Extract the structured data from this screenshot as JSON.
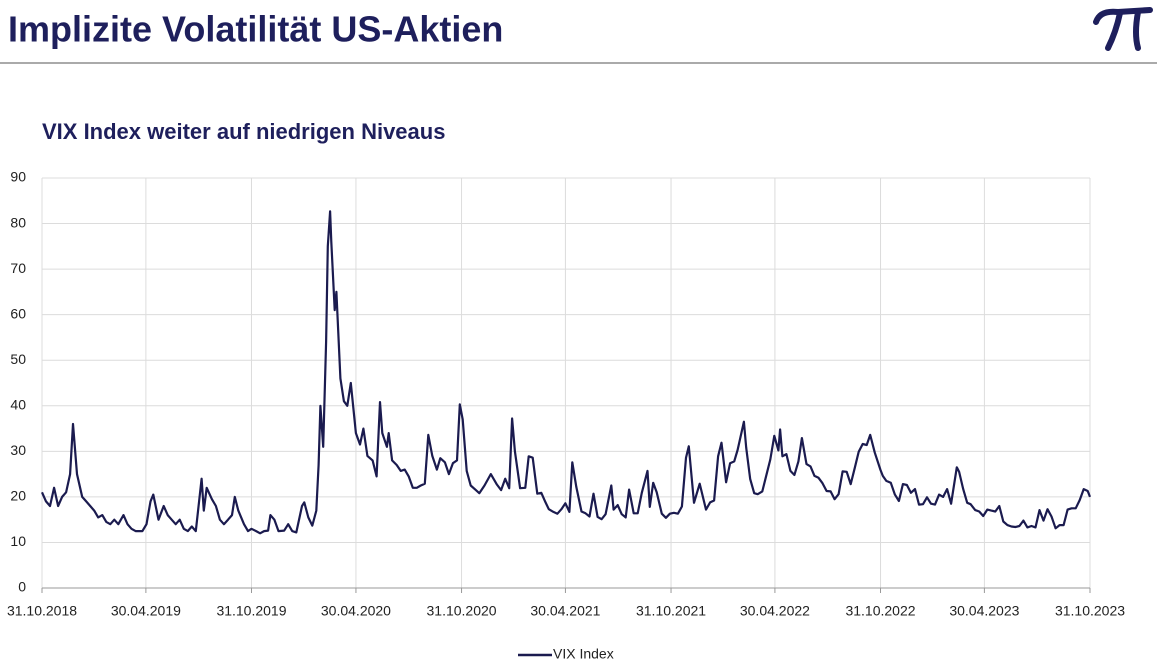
{
  "header": {
    "title": "Implizite Volatilität US-Aktien"
  },
  "chart_data": {
    "type": "line",
    "title": "VIX Index weiter auf niedrigen Niveaus",
    "ylim": [
      0,
      90
    ],
    "yticks": [
      0,
      10,
      20,
      30,
      40,
      50,
      60,
      70,
      80,
      90
    ],
    "xlim": [
      "2018-10-31",
      "2023-10-31"
    ],
    "xticks": [
      {
        "value": "2018-10-31",
        "label": "31.10.2018"
      },
      {
        "value": "2019-04-30",
        "label": "30.04.2019"
      },
      {
        "value": "2019-10-31",
        "label": "31.10.2019"
      },
      {
        "value": "2020-04-30",
        "label": "30.04.2020"
      },
      {
        "value": "2020-10-31",
        "label": "31.10.2020"
      },
      {
        "value": "2021-04-30",
        "label": "30.04.2021"
      },
      {
        "value": "2021-10-31",
        "label": "31.10.2021"
      },
      {
        "value": "2022-04-30",
        "label": "30.04.2022"
      },
      {
        "value": "2022-10-31",
        "label": "31.10.2022"
      },
      {
        "value": "2023-04-30",
        "label": "30.04.2023"
      },
      {
        "value": "2023-10-31",
        "label": "31.10.2023"
      }
    ],
    "grid": true,
    "legend": "bottom",
    "x": [
      "2018-10-31",
      "2018-11-07",
      "2018-11-14",
      "2018-11-21",
      "2018-11-28",
      "2018-12-05",
      "2018-12-12",
      "2018-12-19",
      "2018-12-24",
      "2018-12-31",
      "2019-01-09",
      "2019-01-16",
      "2019-01-23",
      "2019-01-30",
      "2019-02-06",
      "2019-02-13",
      "2019-02-20",
      "2019-02-27",
      "2019-03-06",
      "2019-03-13",
      "2019-03-22",
      "2019-03-29",
      "2019-04-05",
      "2019-04-12",
      "2019-04-24",
      "2019-05-01",
      "2019-05-08",
      "2019-05-13",
      "2019-05-22",
      "2019-05-31",
      "2019-06-07",
      "2019-06-14",
      "2019-06-21",
      "2019-06-28",
      "2019-07-05",
      "2019-07-12",
      "2019-07-19",
      "2019-07-26",
      "2019-08-05",
      "2019-08-09",
      "2019-08-14",
      "2019-08-23",
      "2019-08-30",
      "2019-09-06",
      "2019-09-13",
      "2019-09-20",
      "2019-09-27",
      "2019-10-02",
      "2019-10-08",
      "2019-10-18",
      "2019-10-25",
      "2019-10-31",
      "2019-11-08",
      "2019-11-15",
      "2019-11-22",
      "2019-11-29",
      "2019-12-03",
      "2019-12-10",
      "2019-12-17",
      "2019-12-27",
      "2020-01-03",
      "2020-01-10",
      "2020-01-17",
      "2020-01-27",
      "2020-01-31",
      "2020-02-07",
      "2020-02-14",
      "2020-02-21",
      "2020-02-25",
      "2020-02-28",
      "2020-03-04",
      "2020-03-09",
      "2020-03-12",
      "2020-03-16",
      "2020-03-18",
      "2020-03-24",
      "2020-03-27",
      "2020-04-03",
      "2020-04-09",
      "2020-04-15",
      "2020-04-21",
      "2020-04-30",
      "2020-05-07",
      "2020-05-13",
      "2020-05-20",
      "2020-05-29",
      "2020-06-05",
      "2020-06-11",
      "2020-06-15",
      "2020-06-23",
      "2020-06-26",
      "2020-07-02",
      "2020-07-10",
      "2020-07-17",
      "2020-07-24",
      "2020-07-31",
      "2020-08-07",
      "2020-08-14",
      "2020-08-21",
      "2020-08-28",
      "2020-09-03",
      "2020-09-10",
      "2020-09-18",
      "2020-09-24",
      "2020-10-02",
      "2020-10-09",
      "2020-10-16",
      "2020-10-23",
      "2020-10-28",
      "2020-11-02",
      "2020-11-09",
      "2020-11-16",
      "2020-11-24",
      "2020-12-01",
      "2020-12-10",
      "2020-12-21",
      "2020-12-31",
      "2021-01-08",
      "2021-01-15",
      "2021-01-22",
      "2021-01-27",
      "2021-02-01",
      "2021-02-10",
      "2021-02-19",
      "2021-02-25",
      "2021-03-04",
      "2021-03-12",
      "2021-03-19",
      "2021-03-26",
      "2021-04-01",
      "2021-04-09",
      "2021-04-16",
      "2021-04-23",
      "2021-04-30",
      "2021-05-07",
      "2021-05-12",
      "2021-05-19",
      "2021-05-28",
      "2021-06-04",
      "2021-06-11",
      "2021-06-18",
      "2021-06-25",
      "2021-07-02",
      "2021-07-09",
      "2021-07-19",
      "2021-07-23",
      "2021-07-30",
      "2021-08-06",
      "2021-08-13",
      "2021-08-19",
      "2021-08-27",
      "2021-09-03",
      "2021-09-10",
      "2021-09-20",
      "2021-09-24",
      "2021-09-30",
      "2021-10-06",
      "2021-10-15",
      "2021-10-22",
      "2021-10-29",
      "2021-11-05",
      "2021-11-12",
      "2021-11-19",
      "2021-11-26",
      "2021-12-01",
      "2021-12-10",
      "2021-12-20",
      "2021-12-31",
      "2022-01-07",
      "2022-01-14",
      "2022-01-21",
      "2022-01-27",
      "2022-02-04",
      "2022-02-11",
      "2022-02-18",
      "2022-02-24",
      "2022-03-07",
      "2022-03-11",
      "2022-03-18",
      "2022-03-25",
      "2022-03-31",
      "2022-04-08",
      "2022-04-14",
      "2022-04-22",
      "2022-04-29",
      "2022-05-06",
      "2022-05-09",
      "2022-05-13",
      "2022-05-20",
      "2022-05-27",
      "2022-06-03",
      "2022-06-10",
      "2022-06-16",
      "2022-06-24",
      "2022-07-01",
      "2022-07-08",
      "2022-07-15",
      "2022-07-22",
      "2022-07-29",
      "2022-08-05",
      "2022-08-12",
      "2022-08-19",
      "2022-08-26",
      "2022-09-02",
      "2022-09-09",
      "2022-09-16",
      "2022-09-23",
      "2022-09-30",
      "2022-10-07",
      "2022-10-13",
      "2022-10-21",
      "2022-10-31",
      "2022-11-04",
      "2022-11-10",
      "2022-11-18",
      "2022-11-25",
      "2022-12-02",
      "2022-12-09",
      "2022-12-16",
      "2022-12-23",
      "2022-12-30",
      "2023-01-06",
      "2023-01-13",
      "2023-01-20",
      "2023-01-27",
      "2023-02-03",
      "2023-02-10",
      "2023-02-17",
      "2023-02-24",
      "2023-03-03",
      "2023-03-13",
      "2023-03-17",
      "2023-03-24",
      "2023-03-31",
      "2023-04-06",
      "2023-04-14",
      "2023-04-21",
      "2023-04-28",
      "2023-05-05",
      "2023-05-12",
      "2023-05-19",
      "2023-05-26",
      "2023-06-02",
      "2023-06-09",
      "2023-06-16",
      "2023-06-23",
      "2023-06-30",
      "2023-07-07",
      "2023-07-14",
      "2023-07-21",
      "2023-07-28",
      "2023-08-04",
      "2023-08-11",
      "2023-08-18",
      "2023-08-25",
      "2023-09-01",
      "2023-09-08",
      "2023-09-15",
      "2023-09-22",
      "2023-09-29",
      "2023-10-06",
      "2023-10-13",
      "2023-10-20",
      "2023-10-27",
      "2023-10-31"
    ],
    "series": [
      {
        "name": "VIX Index",
        "color": "#1b1b4f",
        "values": [
          21,
          19,
          18,
          22,
          18,
          20,
          21,
          25,
          36,
          25,
          20,
          19,
          18,
          17,
          15.5,
          16,
          14.5,
          14,
          15,
          14,
          16,
          14,
          13,
          12.5,
          12.5,
          14,
          19,
          20.5,
          15,
          18,
          16,
          15,
          14,
          15,
          13,
          12.5,
          13.5,
          12.5,
          24,
          17,
          22,
          19.5,
          18,
          15,
          14,
          15,
          16,
          20,
          17,
          14,
          12.5,
          13,
          12.5,
          12,
          12.5,
          12.6,
          16,
          15,
          12.5,
          12.6,
          14,
          12.5,
          12.2,
          18,
          18.8,
          15.5,
          13.7,
          17,
          27,
          40,
          31,
          54,
          75,
          82.7,
          76,
          61,
          65,
          46,
          41,
          40,
          45,
          34,
          31.5,
          35,
          29,
          28,
          24.5,
          40.8,
          34,
          31,
          34,
          28,
          27,
          25.7,
          26,
          24.5,
          22,
          22,
          22.5,
          22.9,
          33.6,
          29,
          26,
          28.5,
          27.6,
          25,
          27.4,
          28,
          40.3,
          37,
          25.7,
          22.5,
          21.6,
          20.8,
          22.5,
          25,
          22.8,
          21.5,
          24,
          21.9,
          37.2,
          30,
          21.9,
          22,
          28.9,
          28.6,
          20.7,
          20.9,
          18.9,
          17.3,
          16.7,
          16.3,
          17.3,
          18.6,
          16.7,
          27.6,
          22.2,
          16.8,
          16.4,
          15.7,
          20.7,
          15.6,
          15.1,
          16.2,
          22.5,
          17.2,
          18.2,
          16.2,
          15.5,
          21.6,
          16.4,
          16.4,
          20.9,
          25.7,
          17.8,
          23.1,
          21,
          16.3,
          15.4,
          16.3,
          16.5,
          16.3,
          17.9,
          28.6,
          31.1,
          18.7,
          22.9,
          17.2,
          18.8,
          19.2,
          28.9,
          31.9,
          23.2,
          27.4,
          27.8,
          30.3,
          36.5,
          30.8,
          23.9,
          20.8,
          20.6,
          21.2,
          24.2,
          28.2,
          33.4,
          30.2,
          34.8,
          28.9,
          29.4,
          25.7,
          24.8,
          27.8,
          32.9,
          27.2,
          26.7,
          24.6,
          24.2,
          23,
          21.3,
          21.2,
          19.5,
          20.6,
          25.6,
          25.5,
          22.8,
          26.3,
          29.9,
          31.6,
          31.4,
          33.6,
          29.7,
          25.9,
          24.6,
          23.5,
          23.1,
          20.5,
          19.1,
          22.8,
          22.6,
          20.9,
          21.7,
          18.3,
          18.4,
          19.9,
          18.5,
          18.3,
          20.5,
          20,
          21.7,
          18.5,
          26.5,
          25.5,
          21.7,
          18.7,
          18.4,
          17.1,
          16.8,
          15.8,
          17.2,
          17,
          16.8,
          18,
          14.6,
          13.8,
          13.5,
          13.4,
          13.6,
          14.8,
          13.3,
          13.6,
          13.3,
          17.1,
          14.8,
          17.3,
          15.7,
          13.1,
          13.8,
          13.8,
          17.2,
          17.5,
          17.5,
          19.3,
          21.7,
          21.3,
          20
        ]
      }
    ]
  }
}
